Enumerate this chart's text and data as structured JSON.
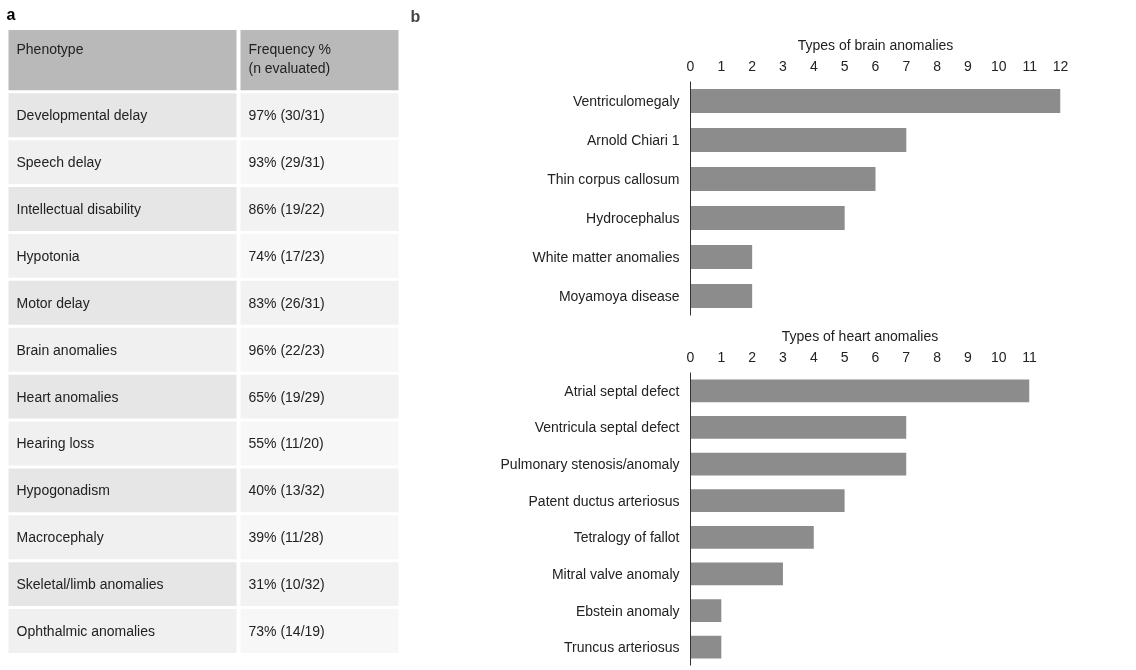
{
  "chart_data": [
    {
      "type": "other",
      "title": "a",
      "annotations": [
        "Phenotype",
        "Frequency %\n(n evaluated)",
        "Developmental delay",
        "97% (30/31)",
        "Speech delay",
        "93% (29/31)",
        "Intellectual disability",
        "86% (19/22)",
        "Hypotonia",
        "74% (17/23)",
        "Motor delay",
        "83% (26/31)",
        "Brain anomalies",
        "96% (22/23)",
        "Heart anomalies",
        "65% (19/29)",
        "Hearing loss",
        "55% (11/20)",
        "Hypogonadism",
        "40% (13/32)",
        "Macrocephaly",
        "39% (11/28)",
        "Skeletal/limb anomalies",
        "31% (10/32)",
        "Ophthalmic anomalies",
        "73% (14/19)"
      ]
    },
    {
      "type": "bar",
      "orientation": "horizontal",
      "title": "Types of brain anomalies",
      "annotations": [
        "b"
      ],
      "categories": [
        "Ventriculomegaly",
        "Arnold Chiari 1",
        "Thin corpus callosum",
        "Hydrocephalus",
        "White matter anomalies",
        "Moyamoya disease"
      ],
      "values": [
        12,
        7,
        6,
        5,
        2,
        2
      ],
      "color": "#8c8c8c",
      "xlim": [
        0,
        12
      ],
      "xticks": [
        0,
        1,
        2,
        3,
        4,
        5,
        6,
        7,
        8,
        9,
        10,
        11,
        12
      ],
      "grid": false
    },
    {
      "type": "bar",
      "orientation": "horizontal",
      "title": "Types of heart anomalies",
      "categories": [
        "Atrial septal defect",
        "Ventricula septal defect",
        "Pulmonary stenosis/anomaly",
        "Patent ductus arteriosus",
        "Tetralogy of fallot",
        "Mitral valve anomaly",
        "Ebstein anomaly",
        "Truncus arteriosus"
      ],
      "values": [
        11,
        7,
        7,
        5,
        4,
        3,
        1,
        1
      ],
      "color": "#8c8c8c",
      "xlim": [
        0,
        11
      ],
      "xticks": [
        0,
        1,
        2,
        3,
        4,
        5,
        6,
        7,
        8,
        9,
        10,
        11
      ],
      "grid": false
    }
  ]
}
